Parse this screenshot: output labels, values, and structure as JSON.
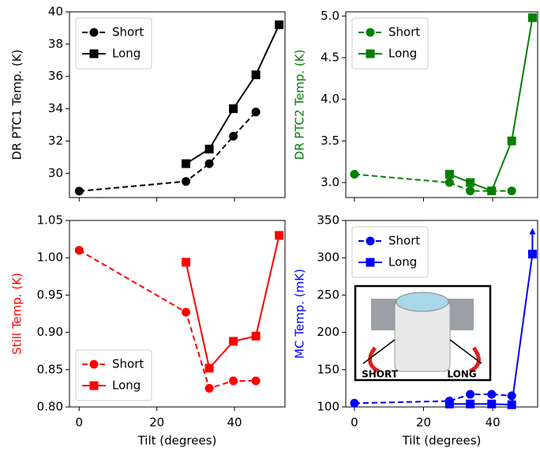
{
  "chart_data": [
    {
      "type": "line",
      "ylabel": "DR PTC1 Temp. (K)",
      "ylabel_color": "#000000",
      "xlim": [
        -2.5,
        53
      ],
      "xticks": [
        0,
        20,
        40
      ],
      "show_xtick_labels": false,
      "ylim": [
        28.5,
        40
      ],
      "yticks": [
        30,
        32,
        34,
        36,
        38,
        40
      ],
      "legend": "upper left",
      "series": [
        {
          "name": "Short",
          "color": "#000000",
          "linestyle": "dashed",
          "marker": "circle",
          "x": [
            0,
            27.5,
            33.5,
            39.7,
            45.5
          ],
          "values": [
            28.9,
            29.5,
            30.6,
            32.3,
            33.8
          ]
        },
        {
          "name": "Long",
          "color": "#000000",
          "linestyle": "solid",
          "marker": "square",
          "x": [
            27.5,
            33.5,
            39.7,
            45.5,
            51.5
          ],
          "values": [
            30.6,
            31.5,
            34.0,
            36.1,
            39.2
          ]
        }
      ]
    },
    {
      "type": "line",
      "ylabel": "DR PTC2 Temp. (K)",
      "ylabel_color": "#008000",
      "xlim": [
        -2.5,
        53
      ],
      "xticks": [
        0,
        20,
        40
      ],
      "show_xtick_labels": false,
      "ylim": [
        2.82,
        5.05
      ],
      "yticks": [
        {
          "value": 3,
          "label": "3.0"
        },
        3.5,
        {
          "value": 4,
          "label": "4.0"
        },
        4.5,
        {
          "value": 5,
          "label": "5.0"
        }
      ],
      "legend": "upper left",
      "series": [
        {
          "name": "Short",
          "color": "#008000",
          "linestyle": "dashed",
          "marker": "circle",
          "x": [
            0,
            27.5,
            33.5,
            39.7,
            45.5
          ],
          "values": [
            3.1,
            3.0,
            2.9,
            2.9,
            2.9
          ]
        },
        {
          "name": "Long",
          "color": "#008000",
          "linestyle": "solid",
          "marker": "square",
          "x": [
            27.5,
            33.5,
            39.7,
            45.5,
            51.5
          ],
          "values": [
            3.1,
            3.0,
            2.9,
            3.5,
            4.98
          ]
        }
      ]
    },
    {
      "type": "line",
      "ylabel": "Still Temp. (K)",
      "ylabel_color": "#ff0000",
      "xlabel": "Tilt (degrees)",
      "xlim": [
        -2.5,
        53
      ],
      "xticks": [
        0,
        20,
        40
      ],
      "show_xtick_labels": true,
      "ylim": [
        0.8,
        1.05
      ],
      "yticks": [
        {
          "value": 0.8,
          "label": "0.80"
        },
        0.85,
        {
          "value": 0.9,
          "label": "0.90"
        },
        0.95,
        {
          "value": 1,
          "label": "1.00"
        },
        1.05
      ],
      "legend": "lower left",
      "series": [
        {
          "name": "Short",
          "color": "#ff0000",
          "linestyle": "dashed",
          "marker": "circle",
          "x": [
            0,
            27.5,
            33.5,
            39.7,
            45.5
          ],
          "values": [
            1.01,
            0.927,
            0.825,
            0.835,
            0.835
          ]
        },
        {
          "name": "Long",
          "color": "#ff0000",
          "linestyle": "solid",
          "marker": "square",
          "x": [
            27.5,
            33.5,
            39.7,
            45.5,
            51.5
          ],
          "values": [
            0.994,
            0.852,
            0.888,
            0.895,
            1.03
          ]
        }
      ]
    },
    {
      "type": "line",
      "ylabel": "MC Temp. (mK)",
      "ylabel_color": "#0000ff",
      "xlabel": "Tilt (degrees)",
      "xlim": [
        -2.5,
        53
      ],
      "xticks": [
        0,
        20,
        40
      ],
      "show_xtick_labels": true,
      "ylim": [
        100,
        350
      ],
      "yticks": [
        100,
        150,
        200,
        250,
        300,
        350
      ],
      "legend": "upper left",
      "inset_labels": [
        "SHORT",
        "LONG"
      ],
      "series": [
        {
          "name": "Short",
          "color": "#0000ff",
          "linestyle": "dashed",
          "marker": "circle",
          "x": [
            0,
            27.5,
            33.5,
            39.7,
            45.5
          ],
          "values": [
            105,
            108,
            117,
            117,
            115
          ]
        },
        {
          "name": "Long",
          "color": "#0000ff",
          "linestyle": "solid",
          "marker": "square",
          "x": [
            27.5,
            33.5,
            39.7,
            45.5,
            51.5
          ],
          "values": [
            104,
            104,
            104,
            103,
            305
          ],
          "errors": [
            null,
            null,
            null,
            null,
            35
          ]
        }
      ]
    }
  ]
}
